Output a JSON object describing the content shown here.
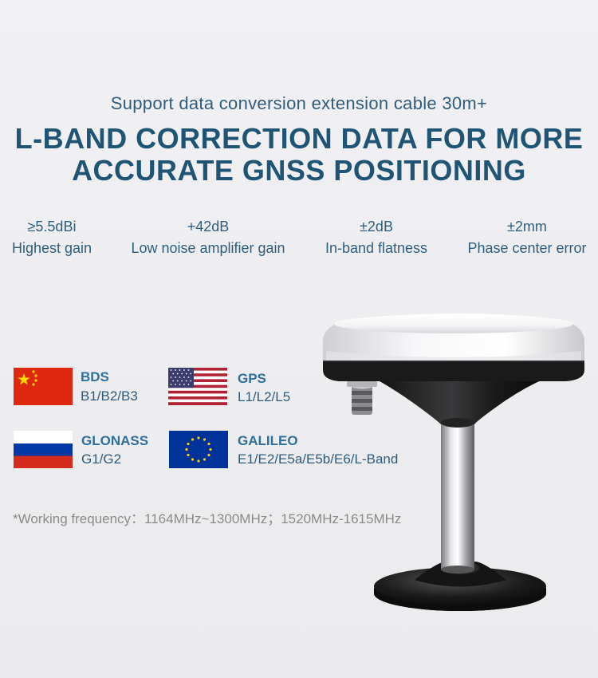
{
  "subtitle": "Support data conversion extension cable 30m+",
  "headline": {
    "line1": "L-BAND CORRECTION DATA FOR MORE",
    "line2": "ACCURATE GNSS POSITIONING"
  },
  "specs": [
    {
      "value": "≥5.5dBi",
      "label": "Highest gain"
    },
    {
      "value": "+42dB",
      "label": "Low noise amplifier gain"
    },
    {
      "value": "±2dB",
      "label": "In-band flatness"
    },
    {
      "value": "±2mm",
      "label": "Phase center error"
    }
  ],
  "systems": [
    {
      "name": "BDS",
      "bands": "B1/B2/B3",
      "flag": "china-flag-icon"
    },
    {
      "name": "GPS",
      "bands": "L1/L2/L5",
      "flag": "usa-flag-icon"
    },
    {
      "name": "GLONASS",
      "bands": "G1/G2",
      "flag": "russia-flag-icon"
    },
    {
      "name": "GALILEO",
      "bands": "E1/E2/E5a/E5b/E6/L-Band",
      "flag": "eu-flag-icon"
    }
  ],
  "note": "*Working frequency：1164MHz~1300MHz；1520MHz-1615MHz",
  "colors": {
    "headline": "#1f5475",
    "accent": "#2f6f9c",
    "china_red": "#de2910",
    "china_yellow": "#ffde00",
    "usa_red": "#b22234",
    "usa_blue": "#3c3b6e",
    "russia_blue": "#0039a6",
    "russia_red": "#d52b1e",
    "eu_blue": "#003399",
    "eu_gold": "#ffcc00"
  },
  "product_image": "gnss-antenna-with-pole-mount"
}
